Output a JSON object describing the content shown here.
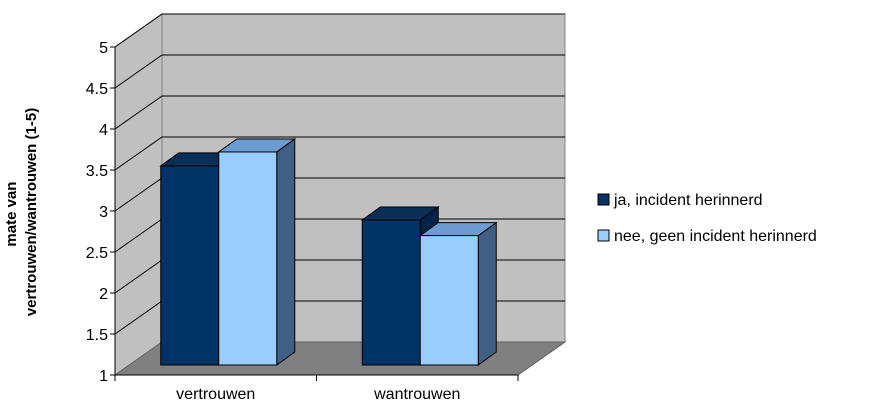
{
  "chart_data": {
    "type": "bar",
    "style": "3d-clustered-column",
    "categories": [
      "vertrouwen",
      "wantrouwen"
    ],
    "series": [
      {
        "name": "ja, incident herinnerd",
        "values": [
          3.55,
          2.89
        ],
        "color": "#003366",
        "side_color": "#002447",
        "top_color": "#0a2f57"
      },
      {
        "name": "nee, geen incident herinnerd",
        "values": [
          3.72,
          2.7
        ],
        "color": "#99ccff",
        "side_color": "#3f5f85",
        "top_color": "#6b9bd0"
      }
    ],
    "ylabel_lines": [
      "mate van",
      "vertrouwen/wantrouwen (1-5)"
    ],
    "xlabel": "",
    "ylim": [
      1,
      5
    ],
    "yticks": [
      "1",
      "1.5",
      "2",
      "2.5",
      "3",
      "3.5",
      "4",
      "4.5",
      "5"
    ],
    "grid": true,
    "legend_position": "right",
    "wall_color": "#c0c0c0",
    "floor_color": "#808080"
  }
}
